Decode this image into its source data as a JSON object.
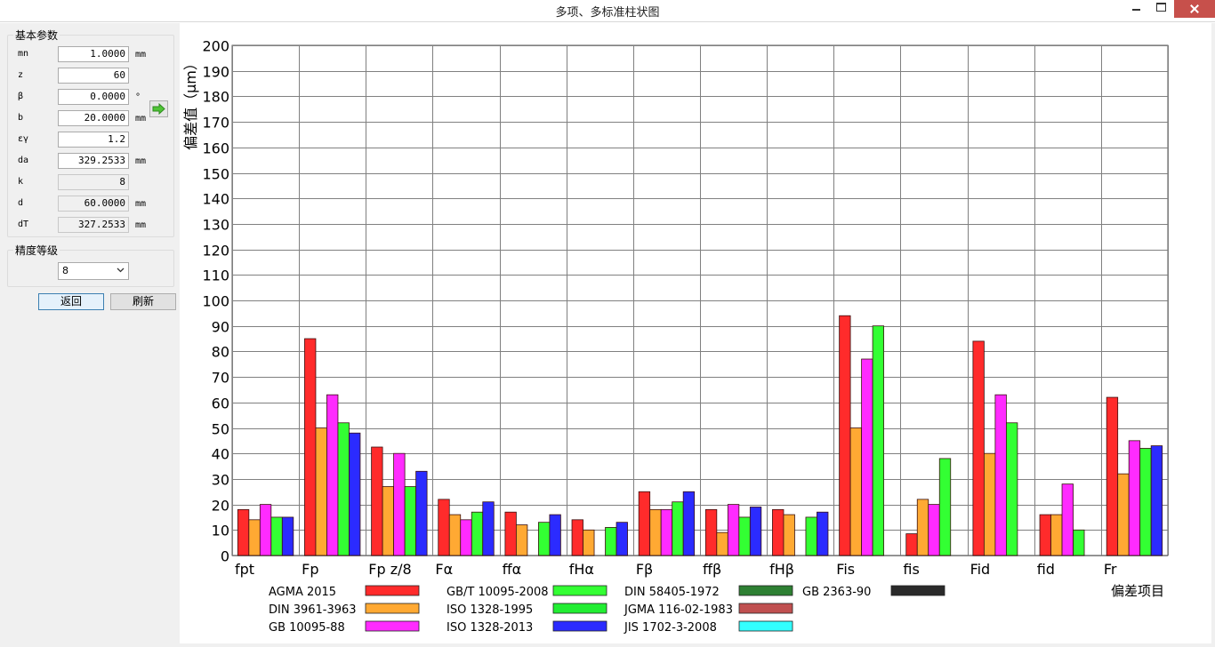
{
  "window": {
    "title": "多项、多标准柱状图"
  },
  "basic_params": {
    "title": "基本参数",
    "rows": [
      {
        "label": "mn",
        "value": "1.0000",
        "unit": "mm",
        "readonly": false
      },
      {
        "label": "z",
        "value": "60",
        "unit": "",
        "readonly": false
      },
      {
        "label": "β",
        "value": "0.0000",
        "unit": "°",
        "readonly": false
      },
      {
        "label": "b",
        "value": "20.0000",
        "unit": "mm",
        "readonly": false
      },
      {
        "label": "εγ",
        "value": "1.2",
        "unit": "",
        "readonly": false
      },
      {
        "label": "da",
        "value": "329.2533",
        "unit": "mm",
        "readonly": false
      },
      {
        "label": "k",
        "value": "8",
        "unit": "",
        "readonly": true
      },
      {
        "label": "d",
        "value": "60.0000",
        "unit": "mm",
        "readonly": true
      },
      {
        "label": "dT",
        "value": "327.2533",
        "unit": "mm",
        "readonly": true
      }
    ]
  },
  "accuracy": {
    "title": "精度等级",
    "selected": "8"
  },
  "buttons": {
    "back": "返回",
    "refresh": "刷新"
  },
  "colors": {
    "AGMA 2015": "#ff2b2b",
    "DIN 3961-3963": "#ffa933",
    "GB 10095-88": "#ff2bff",
    "GB/T 10095-2008": "#33ff33",
    "ISO 1328-1995": "#22ee33",
    "ISO 1328-2013": "#2b2bff",
    "DIN 58405-1972": "#2e8033",
    "JGMA 116-02-1983": "#c05050",
    "JIS 1702-3-2008": "#33ffff",
    "GB 2363-90": "#2a2a2a"
  },
  "chart_data": {
    "type": "bar",
    "title": "",
    "ylabel": "偏差值（μm）",
    "xlabel": "偏差项目",
    "ylim": [
      0,
      200
    ],
    "ytick_step": 10,
    "grid": true,
    "legend_position": "bottom",
    "categories": [
      "fpt",
      "Fp",
      "Fp z/8",
      "Fα",
      "ffα",
      "fHα",
      "Fβ",
      "ffβ",
      "fHβ",
      "Fis",
      "fis",
      "Fid",
      "fid",
      "Fr"
    ],
    "series": [
      {
        "name": "AGMA 2015",
        "values": [
          18,
          85,
          42.5,
          22,
          17,
          14,
          25,
          18,
          18,
          94,
          8.5,
          84,
          16,
          62
        ]
      },
      {
        "name": "DIN 3961-3963",
        "values": [
          14,
          50,
          27,
          16,
          12,
          10,
          18,
          9,
          16,
          50,
          22,
          40,
          16,
          32
        ]
      },
      {
        "name": "GB 10095-88",
        "values": [
          20,
          63,
          40,
          14,
          0,
          0,
          18,
          20,
          0,
          77,
          20,
          63,
          28,
          45
        ]
      },
      {
        "name": "GB/T 10095-2008",
        "values": [
          15,
          52,
          27,
          17,
          13,
          11,
          21,
          15,
          15,
          90,
          38,
          52,
          10,
          42
        ]
      },
      {
        "name": "ISO 1328-2013",
        "values": [
          15,
          48,
          33,
          21,
          16,
          13,
          25,
          19,
          17,
          0,
          0,
          0,
          0,
          43
        ]
      }
    ],
    "legend": [
      "AGMA 2015",
      "DIN 3961-3963",
      "GB 10095-88",
      "GB/T 10095-2008",
      "ISO 1328-1995",
      "ISO 1328-2013",
      "DIN 58405-1972",
      "JGMA 116-02-1983",
      "JIS 1702-3-2008",
      "GB 2363-90"
    ]
  }
}
